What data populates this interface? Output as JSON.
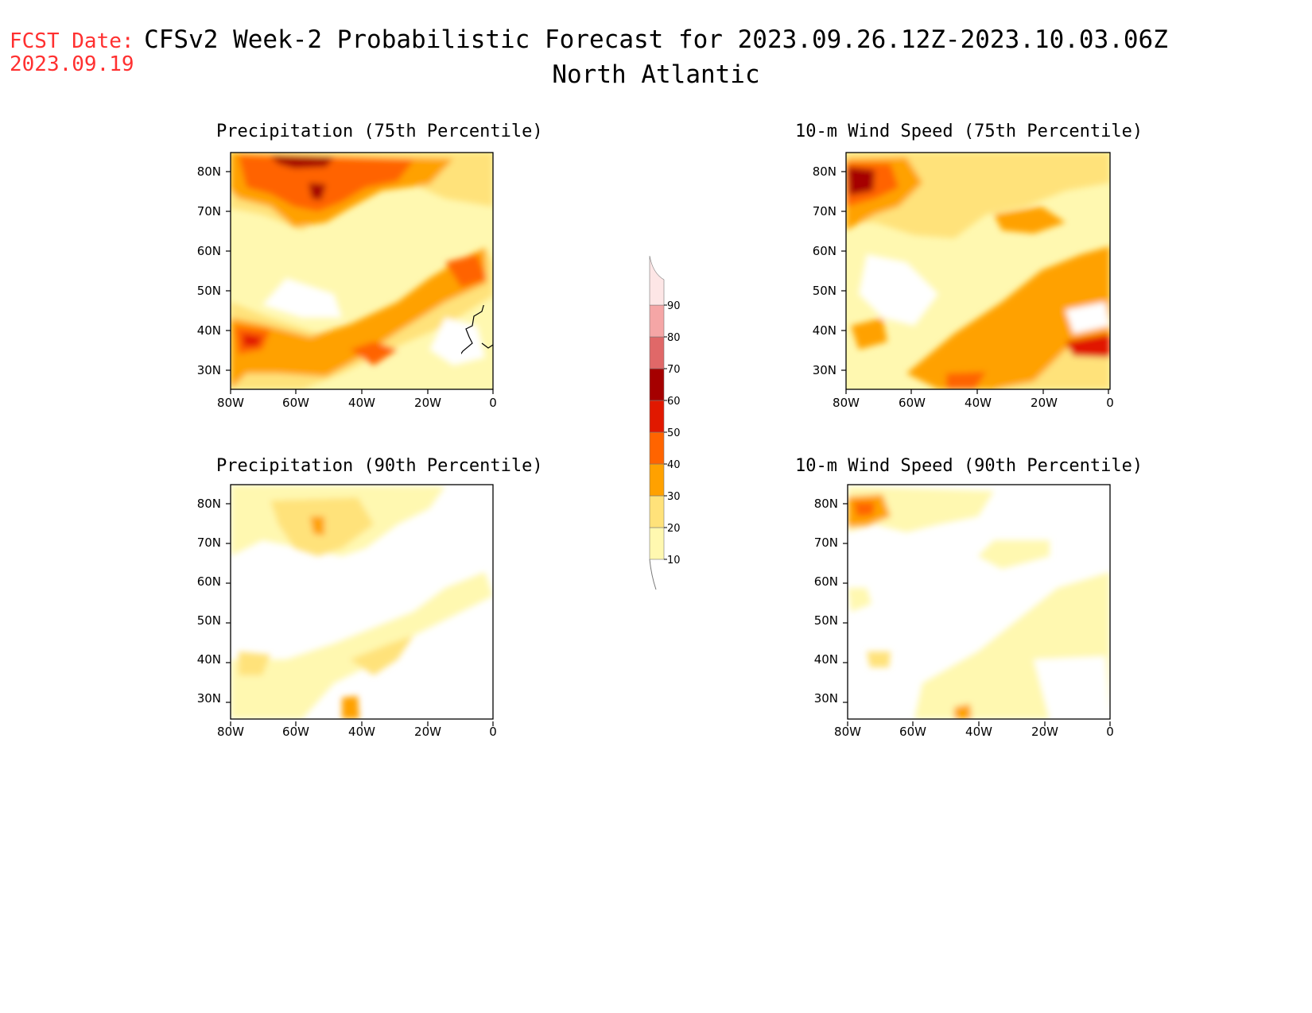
{
  "header": {
    "fcst_label": "FCST Date:",
    "fcst_date": "2023.09.19",
    "title": "CFSv2 Week-2 Probabilistic Forecast for 2023.09.26.12Z-2023.10.03.06Z",
    "subtitle": "North Atlantic"
  },
  "panels": [
    {
      "title": "Precipitation (75th Percentile)"
    },
    {
      "title": "10-m Wind Speed (75th Percentile)"
    },
    {
      "title": "Precipitation (90th Percentile)"
    },
    {
      "title": "10-m Wind Speed (90th Percentile)"
    }
  ],
  "axes": {
    "lat_labels": [
      "80N",
      "70N",
      "60N",
      "50N",
      "40N",
      "30N"
    ],
    "lon_labels": [
      "80W",
      "60W",
      "40W",
      "20W",
      "0"
    ]
  },
  "colorbar": {
    "levels": [
      "10",
      "20",
      "30",
      "40",
      "50",
      "60",
      "70",
      "80",
      "90"
    ],
    "colors": [
      "#fff8b0",
      "#ffe27a",
      "#ffa100",
      "#ff6400",
      "#e11800",
      "#a50000",
      "#e06868",
      "#f5a6a6",
      "#fde6e6"
    ]
  }
}
